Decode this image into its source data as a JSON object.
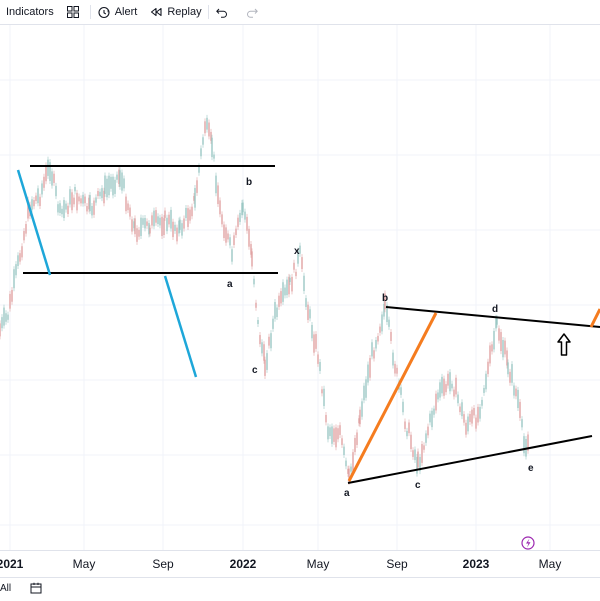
{
  "toolbar": {
    "indicators_label": "Indicators",
    "alert_label": "Alert",
    "replay_label": "Replay",
    "icons": [
      "layout-grid-icon",
      "alarm-clock-icon",
      "replay-icon",
      "undo-icon",
      "redo-icon"
    ]
  },
  "chart": {
    "wave_labels": {
      "b_upper": "b",
      "a_upper": "a",
      "c_upper": "c",
      "x": "x",
      "b_lower": "b",
      "d": "d",
      "a_lower": "a",
      "c_lower": "c",
      "e": "e"
    },
    "colors": {
      "black_lines": "#000000",
      "blue_lines": "#1ea7d9",
      "orange_lines": "#f57c1f",
      "candles": "#9bc8c4",
      "candles_down": "#e0a3a3",
      "lightning": "#9c27b0"
    }
  },
  "time_axis": {
    "labels": [
      "2021",
      "May",
      "Sep",
      "2022",
      "May",
      "Sep",
      "2023",
      "May"
    ]
  },
  "bottom_bar": {
    "range_label": "All"
  }
}
